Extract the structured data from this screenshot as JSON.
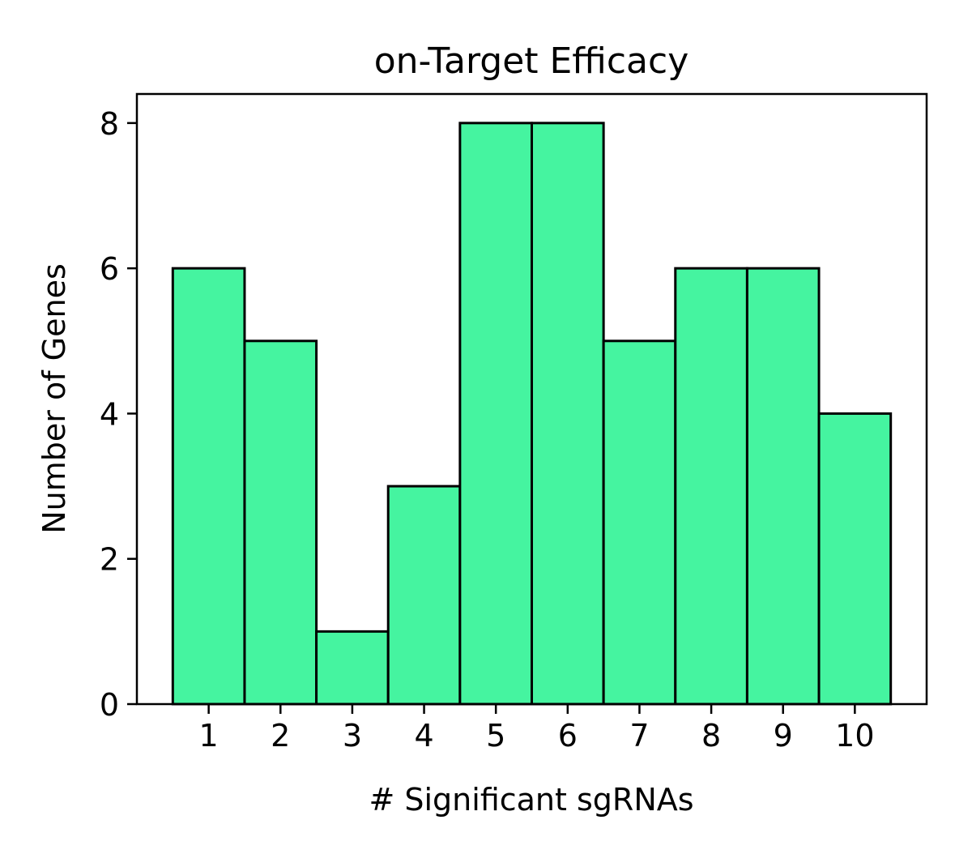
{
  "chart_data": {
    "type": "bar",
    "title": "on-Target Efficacy",
    "xlabel": "# Significant sgRNAs",
    "ylabel": "Number of Genes",
    "categories": [
      "1",
      "2",
      "3",
      "4",
      "5",
      "6",
      "7",
      "8",
      "9",
      "10"
    ],
    "values": [
      6,
      5,
      1,
      3,
      8,
      8,
      5,
      6,
      6,
      4
    ],
    "yticks": [
      "0",
      "2",
      "4",
      "6",
      "8"
    ],
    "xlim": [
      0,
      11
    ],
    "ylim": [
      0,
      8.4
    ],
    "grid": false,
    "bar_color": "#45f4a0",
    "edge_color": "#000000"
  }
}
